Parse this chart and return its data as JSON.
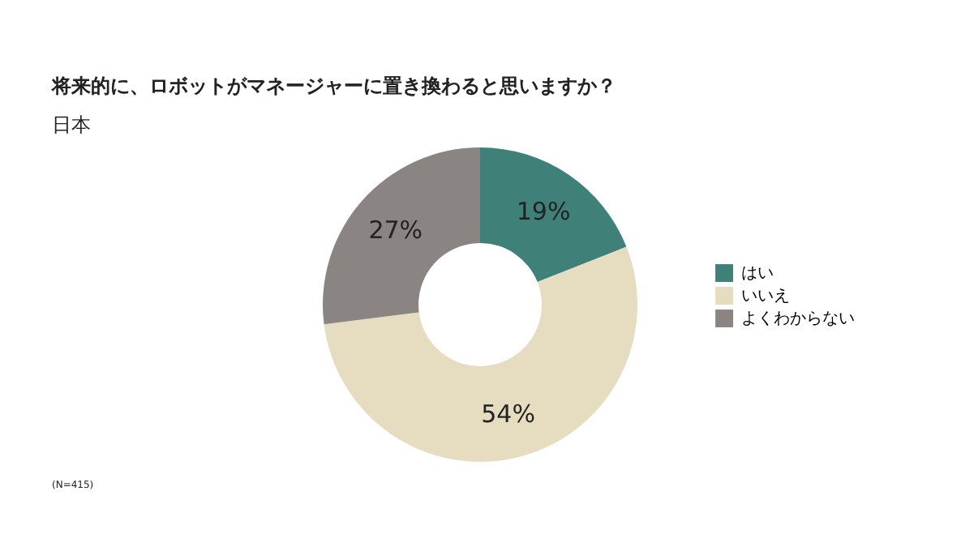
{
  "chart_data": {
    "type": "donut",
    "title": "将来的に、ロボットがマネージャーに置き換わると思いますか？",
    "subtitle": "日本",
    "categories": [
      "はい",
      "いいえ",
      "よくわからない"
    ],
    "values": [
      19,
      54,
      27
    ],
    "colors": [
      "#3f8079",
      "#e6dcc0",
      "#8a8482"
    ],
    "value_labels": [
      "19%",
      "54%",
      "27%"
    ],
    "legend": "right",
    "annotations": [
      "(N=415)"
    ]
  }
}
